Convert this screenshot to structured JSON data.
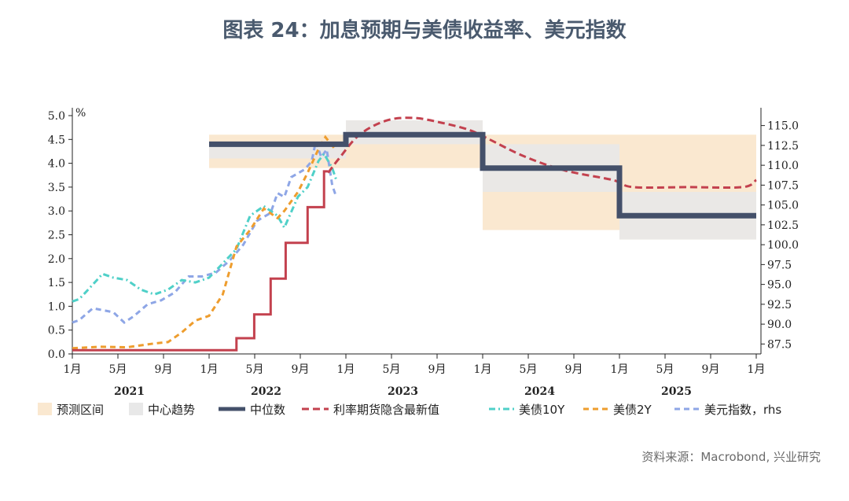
{
  "title": "图表 24：加息预期与美债收益率、美元指数",
  "source": "资料来源：Macrobond, 兴业研究",
  "colors": {
    "forecast_band": "#fae8d0",
    "center_band": "#e8e8e8",
    "median": "#44506a",
    "futures": "#c3414e",
    "ust10y": "#4fd0c8",
    "ust2y": "#ee9d2e",
    "dxy": "#8ea6e6"
  },
  "chart_data": {
    "type": "line",
    "left_axis": {
      "unit": "%",
      "ylim": [
        0,
        5
      ],
      "ticks": [
        "0.0",
        "0.5",
        "1.0",
        "1.5",
        "2.0",
        "2.5",
        "3.0",
        "3.5",
        "4.0",
        "4.5",
        "5.0"
      ]
    },
    "right_axis": {
      "label": "rhs",
      "ylim": [
        86.25,
        116.25
      ],
      "ticks": [
        "87.5",
        "90.0",
        "92.5",
        "95.0",
        "97.5",
        "100.0",
        "102.5",
        "105.0",
        "107.5",
        "110.0",
        "112.5",
        "115.0"
      ]
    },
    "x_ticks": [
      "1月",
      "5月",
      "9月",
      "1月",
      "5月",
      "9月",
      "1月",
      "5月",
      "9月",
      "1月",
      "5月",
      "9月",
      "1月",
      "5月",
      "9月",
      "1月"
    ],
    "years": [
      "2021",
      "2022",
      "2023",
      "2024",
      "2025"
    ],
    "legend": [
      "预测区间",
      "中心趋势",
      "中位数",
      "利率期货隐含最新值",
      "美债10Y",
      "美债2Y",
      "美元指数，rhs"
    ],
    "forecast_range": [
      {
        "x0": 2022.0,
        "x1": 2023.0,
        "lo": 3.9,
        "hi": 4.6
      },
      {
        "x0": 2023.0,
        "x1": 2024.0,
        "lo": 3.9,
        "hi": 4.9
      },
      {
        "x0": 2024.0,
        "x1": 2025.0,
        "lo": 2.6,
        "hi": 4.6
      },
      {
        "x0": 2025.0,
        "x1": 2026.0,
        "lo": 2.4,
        "hi": 4.6
      }
    ],
    "central_tendency": [
      {
        "x0": 2022.0,
        "x1": 2023.0,
        "lo": 4.1,
        "hi": 4.4
      },
      {
        "x0": 2023.0,
        "x1": 2024.0,
        "lo": 4.4,
        "hi": 4.9
      },
      {
        "x0": 2024.0,
        "x1": 2025.0,
        "lo": 3.4,
        "hi": 4.4
      },
      {
        "x0": 2025.0,
        "x1": 2026.0,
        "lo": 2.4,
        "hi": 3.4
      }
    ],
    "median": [
      [
        2022.0,
        4.4
      ],
      [
        2023.0,
        4.4
      ],
      [
        2023.0,
        4.6
      ],
      [
        2024.0,
        4.6
      ],
      [
        2024.0,
        3.9
      ],
      [
        2025.0,
        3.9
      ],
      [
        2025.0,
        2.9
      ],
      [
        2026.0,
        2.9
      ]
    ],
    "fed_funds_futures": [
      [
        2022.87,
        3.8
      ],
      [
        2022.95,
        4.1
      ],
      [
        2023.1,
        4.6
      ],
      [
        2023.3,
        4.9
      ],
      [
        2023.5,
        4.95
      ],
      [
        2023.7,
        4.85
      ],
      [
        2023.9,
        4.7
      ],
      [
        2024.05,
        4.5
      ],
      [
        2024.3,
        4.15
      ],
      [
        2024.6,
        3.85
      ],
      [
        2024.95,
        3.65
      ],
      [
        2025.1,
        3.5
      ],
      [
        2025.5,
        3.5
      ],
      [
        2025.9,
        3.5
      ],
      [
        2026.0,
        3.65
      ]
    ],
    "fed_funds_actual": [
      [
        2021.0,
        0.08
      ],
      [
        2022.2,
        0.08
      ],
      [
        2022.2,
        0.33
      ],
      [
        2022.33,
        0.33
      ],
      [
        2022.33,
        0.83
      ],
      [
        2022.45,
        0.83
      ],
      [
        2022.45,
        1.58
      ],
      [
        2022.56,
        1.58
      ],
      [
        2022.56,
        2.33
      ],
      [
        2022.72,
        2.33
      ],
      [
        2022.72,
        3.08
      ],
      [
        2022.84,
        3.08
      ],
      [
        2022.84,
        3.83
      ],
      [
        2022.87,
        3.83
      ]
    ],
    "ust10y": [
      [
        2021.0,
        1.1
      ],
      [
        2021.05,
        1.15
      ],
      [
        2021.1,
        1.3
      ],
      [
        2021.18,
        1.55
      ],
      [
        2021.22,
        1.68
      ],
      [
        2021.3,
        1.6
      ],
      [
        2021.4,
        1.55
      ],
      [
        2021.5,
        1.35
      ],
      [
        2021.6,
        1.25
      ],
      [
        2021.7,
        1.35
      ],
      [
        2021.8,
        1.55
      ],
      [
        2021.9,
        1.5
      ],
      [
        2022.0,
        1.6
      ],
      [
        2022.1,
        1.9
      ],
      [
        2022.2,
        2.2
      ],
      [
        2022.3,
        2.9
      ],
      [
        2022.4,
        3.1
      ],
      [
        2022.5,
        2.9
      ],
      [
        2022.55,
        2.65
      ],
      [
        2022.65,
        3.3
      ],
      [
        2022.72,
        3.5
      ],
      [
        2022.8,
        4.05
      ],
      [
        2022.84,
        4.2
      ],
      [
        2022.9,
        3.9
      ],
      [
        2022.93,
        3.65
      ]
    ],
    "ust2y": [
      [
        2021.0,
        0.12
      ],
      [
        2021.2,
        0.15
      ],
      [
        2021.4,
        0.14
      ],
      [
        2021.6,
        0.22
      ],
      [
        2021.7,
        0.25
      ],
      [
        2021.8,
        0.45
      ],
      [
        2021.9,
        0.7
      ],
      [
        2022.0,
        0.8
      ],
      [
        2022.1,
        1.25
      ],
      [
        2022.2,
        2.25
      ],
      [
        2022.3,
        2.6
      ],
      [
        2022.4,
        3.05
      ],
      [
        2022.5,
        2.85
      ],
      [
        2022.55,
        3.0
      ],
      [
        2022.65,
        3.4
      ],
      [
        2022.72,
        3.8
      ],
      [
        2022.8,
        4.3
      ],
      [
        2022.85,
        4.55
      ],
      [
        2022.92,
        4.3
      ]
    ],
    "dxy": [
      [
        2021.0,
        90.2
      ],
      [
        2021.05,
        90.5
      ],
      [
        2021.15,
        92.0
      ],
      [
        2021.3,
        91.5
      ],
      [
        2021.38,
        90.2
      ],
      [
        2021.45,
        91.0
      ],
      [
        2021.55,
        92.5
      ],
      [
        2021.65,
        93.0
      ],
      [
        2021.75,
        94.0
      ],
      [
        2021.85,
        96.0
      ],
      [
        2021.95,
        96.0
      ],
      [
        2022.05,
        96.5
      ],
      [
        2022.15,
        98.0
      ],
      [
        2022.25,
        100.0
      ],
      [
        2022.35,
        103.0
      ],
      [
        2022.45,
        104.0
      ],
      [
        2022.5,
        106.5
      ],
      [
        2022.55,
        106.0
      ],
      [
        2022.6,
        108.5
      ],
      [
        2022.7,
        109.5
      ],
      [
        2022.75,
        110.5
      ],
      [
        2022.78,
        113.0
      ],
      [
        2022.82,
        111.0
      ],
      [
        2022.86,
        112.0
      ],
      [
        2022.9,
        107.5
      ],
      [
        2022.93,
        106.0
      ]
    ]
  }
}
